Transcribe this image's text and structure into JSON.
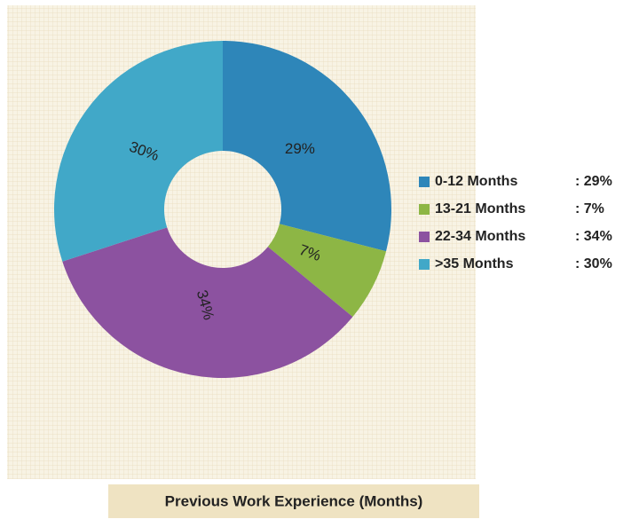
{
  "chart_data": {
    "type": "donut",
    "title": "Previous Work Experience (Months)",
    "categories": [
      "0-12 Months",
      "13-21 Months",
      "22-34 Months",
      ">35 Months"
    ],
    "values": [
      29,
      7,
      34,
      30
    ],
    "value_labels": [
      "29%",
      "7%",
      "34%",
      "30%"
    ],
    "legend_value_labels": [
      ": 29%",
      ": 7%",
      ": 34%",
      ": 30%"
    ],
    "colors": [
      "#2e86b9",
      "#8db645",
      "#8c52a0",
      "#41a8c8"
    ],
    "legend": "right"
  }
}
